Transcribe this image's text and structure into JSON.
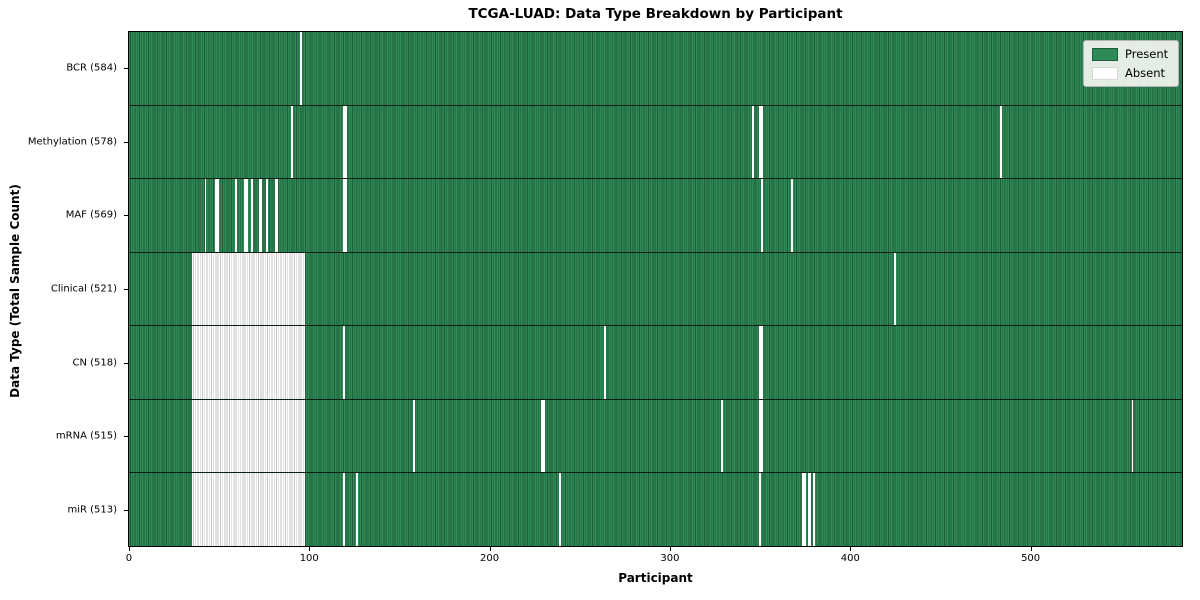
{
  "figure": {
    "title": "TCGA-LUAD: Data Type Breakdown by Participant",
    "xlabel": "Participant",
    "ylabel": "Data Type (Total Sample Count)"
  },
  "legend": {
    "items": [
      {
        "label": "Present",
        "color": "#2e8b57",
        "border": "#1e5c3a"
      },
      {
        "label": "Absent",
        "color": "#ffffff",
        "border": "#d8d8d8"
      }
    ]
  },
  "colors": {
    "present_light": "#2e8b57",
    "present_dark": "#1e5c3a",
    "absent": "#ffffff",
    "absent_edge": "#c6c6c6",
    "axis": "#000000"
  },
  "chart_data": {
    "type": "heatmap",
    "title": "TCGA-LUAD: Data Type Breakdown by Participant",
    "xlabel": "Participant",
    "ylabel": "Data Type (Total Sample Count)",
    "legend": [
      "Present",
      "Absent"
    ],
    "legend_position": "upper right",
    "n_participants": 585,
    "xlim": [
      0,
      585
    ],
    "x_ticks": [
      0,
      100,
      200,
      300,
      400,
      500
    ],
    "cell_values": {
      "present": 1,
      "absent": 0
    },
    "rows": [
      {
        "name": "BCR",
        "label": "BCR (584)",
        "present_count": 584,
        "absent": [
          95
        ]
      },
      {
        "name": "Methylation",
        "label": "Methylation (578)",
        "present_count": 578,
        "absent": [
          90,
          119,
          120,
          346,
          350,
          351,
          484
        ]
      },
      {
        "name": "MAF",
        "label": "MAF (569)",
        "present_count": 569,
        "absent": [
          42,
          48,
          49,
          59,
          64,
          65,
          68,
          72,
          73,
          76,
          81,
          82,
          119,
          120,
          351,
          368
        ]
      },
      {
        "name": "Clinical",
        "label": "Clinical (521)",
        "present_count": 521,
        "absent": [
          [
            35,
            97
          ],
          425
        ]
      },
      {
        "name": "CN",
        "label": "CN (518)",
        "present_count": 518,
        "absent": [
          [
            35,
            97
          ],
          119,
          264,
          350,
          351
        ]
      },
      {
        "name": "mRNA",
        "label": "mRNA (515)",
        "present_count": 515,
        "absent": [
          [
            35,
            97
          ],
          158,
          229,
          230,
          329,
          350,
          351,
          557
        ]
      },
      {
        "name": "miR",
        "label": "miR (513)",
        "present_count": 513,
        "absent": [
          [
            35,
            97
          ],
          119,
          126,
          239,
          350,
          374,
          375,
          377,
          378,
          380
        ]
      }
    ]
  }
}
